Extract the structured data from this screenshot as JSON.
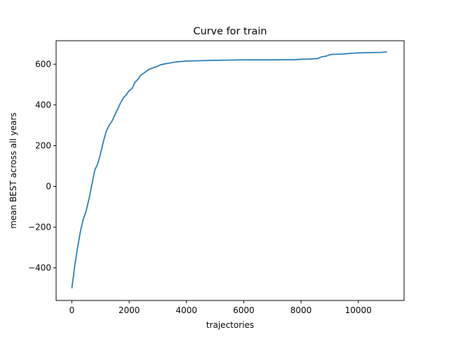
{
  "chart_data": {
    "type": "line",
    "title": "Curve for train",
    "xlabel": "trajectories",
    "ylabel": "mean BEST across all years",
    "xlim": [
      -550,
      11600
    ],
    "ylim": [
      -560,
      715
    ],
    "xticks": [
      0,
      2000,
      4000,
      6000,
      8000,
      10000
    ],
    "yticks": [
      -400,
      -200,
      0,
      200,
      400,
      600
    ],
    "xtick_labels": [
      "0",
      "2000",
      "4000",
      "6000",
      "8000",
      "10000"
    ],
    "ytick_labels": [
      "−400",
      "−200",
      "0",
      "200",
      "400",
      "600"
    ],
    "grid": false,
    "series": [
      {
        "color": "#1f77b4",
        "x": [
          0,
          100,
          200,
          300,
          400,
          500,
          600,
          700,
          800,
          900,
          1000,
          1100,
          1200,
          1300,
          1400,
          1500,
          1600,
          1700,
          1800,
          1900,
          2000,
          2100,
          2200,
          2300,
          2400,
          2500,
          2600,
          2700,
          2800,
          2900,
          3000,
          3100,
          3200,
          3300,
          3400,
          3600,
          3800,
          4000,
          4200,
          4500,
          5000,
          5500,
          6000,
          7000,
          7800,
          8000,
          8300,
          8600,
          8700,
          8900,
          9000,
          9100,
          9500,
          9800,
          10000,
          10500,
          10800,
          11000
        ],
        "y": [
          -500,
          -390,
          -300,
          -220,
          -160,
          -120,
          -60,
          10,
          80,
          110,
          160,
          220,
          270,
          300,
          320,
          350,
          380,
          410,
          435,
          450,
          470,
          480,
          510,
          525,
          545,
          555,
          565,
          575,
          580,
          585,
          590,
          597,
          600,
          603,
          605,
          610,
          613,
          615,
          616,
          617,
          619,
          620,
          621,
          621,
          622,
          624,
          625,
          628,
          635,
          640,
          646,
          648,
          650,
          654,
          655,
          657,
          658,
          660
        ]
      }
    ]
  }
}
